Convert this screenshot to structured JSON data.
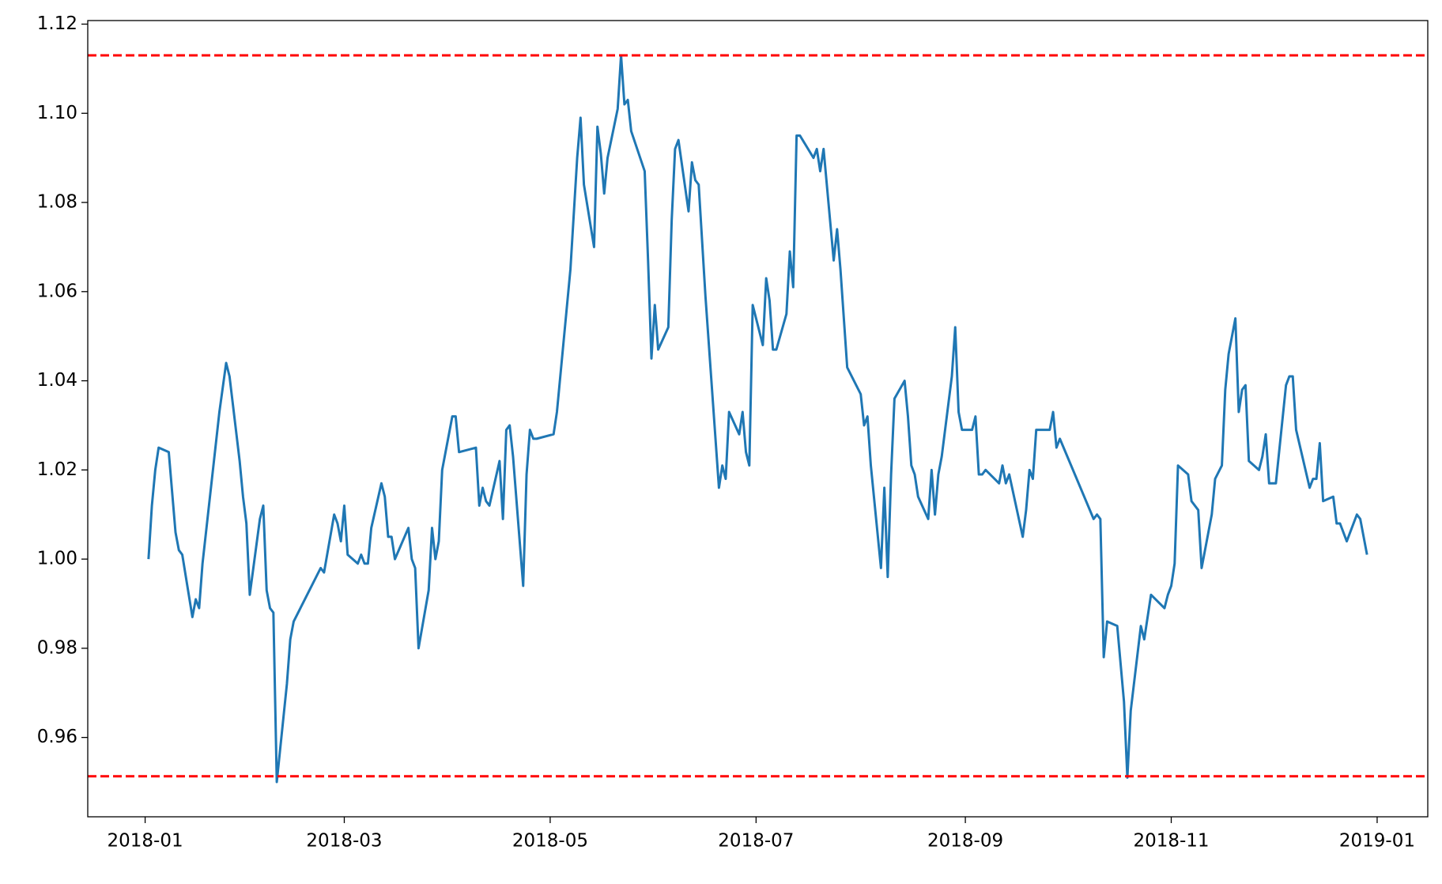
{
  "chart_data": {
    "type": "line",
    "x": [
      "2018-01-02",
      "2018-01-03",
      "2018-01-04",
      "2018-01-05",
      "2018-01-08",
      "2018-01-10",
      "2018-01-11",
      "2018-01-12",
      "2018-01-15",
      "2018-01-16",
      "2018-01-17",
      "2018-01-18",
      "2018-01-23",
      "2018-01-25",
      "2018-01-26",
      "2018-01-29",
      "2018-01-30",
      "2018-01-31",
      "2018-02-01",
      "2018-02-04",
      "2018-02-05",
      "2018-02-06",
      "2018-02-07",
      "2018-02-08",
      "2018-02-09",
      "2018-02-12",
      "2018-02-13",
      "2018-02-14",
      "2018-02-22",
      "2018-02-23",
      "2018-02-26",
      "2018-02-27",
      "2018-02-28",
      "2018-03-01",
      "2018-03-02",
      "2018-03-05",
      "2018-03-06",
      "2018-03-07",
      "2018-03-08",
      "2018-03-09",
      "2018-03-12",
      "2018-03-13",
      "2018-03-14",
      "2018-03-15",
      "2018-03-16",
      "2018-03-20",
      "2018-03-21",
      "2018-03-22",
      "2018-03-23",
      "2018-03-26",
      "2018-03-27",
      "2018-03-28",
      "2018-03-29",
      "2018-03-30",
      "2018-04-02",
      "2018-04-03",
      "2018-04-04",
      "2018-04-09",
      "2018-04-10",
      "2018-04-11",
      "2018-04-12",
      "2018-04-13",
      "2018-04-16",
      "2018-04-17",
      "2018-04-18",
      "2018-04-19",
      "2018-04-20",
      "2018-04-23",
      "2018-04-24",
      "2018-04-25",
      "2018-04-26",
      "2018-04-27",
      "2018-05-02",
      "2018-05-03",
      "2018-05-07",
      "2018-05-09",
      "2018-05-10",
      "2018-05-11",
      "2018-05-14",
      "2018-05-15",
      "2018-05-16",
      "2018-05-17",
      "2018-05-18",
      "2018-05-21",
      "2018-05-22",
      "2018-05-23",
      "2018-05-24",
      "2018-05-25",
      "2018-05-29",
      "2018-05-30",
      "2018-05-31",
      "2018-06-01",
      "2018-06-02",
      "2018-06-05",
      "2018-06-06",
      "2018-06-07",
      "2018-06-08",
      "2018-06-11",
      "2018-06-12",
      "2018-06-13",
      "2018-06-14",
      "2018-06-16",
      "2018-06-20",
      "2018-06-21",
      "2018-06-22",
      "2018-06-23",
      "2018-06-26",
      "2018-06-27",
      "2018-06-28",
      "2018-06-29",
      "2018-06-30",
      "2018-07-03",
      "2018-07-04",
      "2018-07-05",
      "2018-07-06",
      "2018-07-07",
      "2018-07-10",
      "2018-07-11",
      "2018-07-12",
      "2018-07-13",
      "2018-07-14",
      "2018-07-18",
      "2018-07-19",
      "2018-07-20",
      "2018-07-21",
      "2018-07-24",
      "2018-07-25",
      "2018-07-26",
      "2018-07-28",
      "2018-08-01",
      "2018-08-02",
      "2018-08-03",
      "2018-08-04",
      "2018-08-07",
      "2018-08-08",
      "2018-08-09",
      "2018-08-10",
      "2018-08-11",
      "2018-08-14",
      "2018-08-15",
      "2018-08-16",
      "2018-08-17",
      "2018-08-18",
      "2018-08-21",
      "2018-08-22",
      "2018-08-23",
      "2018-08-24",
      "2018-08-25",
      "2018-08-28",
      "2018-08-29",
      "2018-08-30",
      "2018-08-31",
      "2018-09-03",
      "2018-09-04",
      "2018-09-05",
      "2018-09-06",
      "2018-09-07",
      "2018-09-11",
      "2018-09-12",
      "2018-09-13",
      "2018-09-14",
      "2018-09-18",
      "2018-09-19",
      "2018-09-20",
      "2018-09-21",
      "2018-09-22",
      "2018-09-26",
      "2018-09-27",
      "2018-09-28",
      "2018-09-29",
      "2018-10-09",
      "2018-10-10",
      "2018-10-11",
      "2018-10-12",
      "2018-10-13",
      "2018-10-16",
      "2018-10-18",
      "2018-10-19",
      "2018-10-20",
      "2018-10-23",
      "2018-10-24",
      "2018-10-26",
      "2018-10-30",
      "2018-10-31",
      "2018-11-01",
      "2018-11-02",
      "2018-11-03",
      "2018-11-06",
      "2018-11-07",
      "2018-11-09",
      "2018-11-10",
      "2018-11-13",
      "2018-11-14",
      "2018-11-16",
      "2018-11-17",
      "2018-11-18",
      "2018-11-20",
      "2018-11-21",
      "2018-11-22",
      "2018-11-23",
      "2018-11-24",
      "2018-11-27",
      "2018-11-28",
      "2018-11-29",
      "2018-11-30",
      "2018-12-02",
      "2018-12-05",
      "2018-12-06",
      "2018-12-07",
      "2018-12-08",
      "2018-12-12",
      "2018-12-13",
      "2018-12-14",
      "2018-12-15",
      "2018-12-16",
      "2018-12-19",
      "2018-12-20",
      "2018-12-21",
      "2018-12-23",
      "2018-12-26",
      "2018-12-27",
      "2018-12-28",
      "2018-12-29"
    ],
    "series": [
      {
        "color": "#1f77b4",
        "values": [
          1.0,
          1.012,
          1.02,
          1.025,
          1.024,
          1.006,
          1.002,
          1.001,
          0.987,
          0.991,
          0.989,
          0.999,
          1.033,
          1.044,
          1.041,
          1.022,
          1.014,
          1.008,
          0.992,
          1.009,
          1.012,
          0.993,
          0.989,
          0.988,
          0.95,
          0.972,
          0.982,
          0.986,
          0.998,
          0.997,
          1.01,
          1.008,
          1.004,
          1.012,
          1.001,
          0.999,
          1.001,
          0.999,
          0.999,
          1.007,
          1.017,
          1.014,
          1.005,
          1.005,
          1.0,
          1.007,
          1.0,
          0.998,
          0.98,
          0.993,
          1.007,
          1.0,
          1.004,
          1.02,
          1.032,
          1.032,
          1.024,
          1.025,
          1.012,
          1.016,
          1.013,
          1.012,
          1.022,
          1.009,
          1.029,
          1.03,
          1.023,
          0.994,
          1.019,
          1.029,
          1.027,
          1.027,
          1.028,
          1.033,
          1.065,
          1.09,
          1.099,
          1.084,
          1.07,
          1.097,
          1.091,
          1.082,
          1.09,
          1.101,
          1.113,
          1.102,
          1.103,
          1.096,
          1.087,
          1.067,
          1.045,
          1.057,
          1.047,
          1.052,
          1.076,
          1.092,
          1.094,
          1.078,
          1.089,
          1.085,
          1.084,
          1.059,
          1.016,
          1.021,
          1.018,
          1.033,
          1.028,
          1.033,
          1.024,
          1.021,
          1.057,
          1.048,
          1.063,
          1.058,
          1.047,
          1.047,
          1.055,
          1.069,
          1.061,
          1.095,
          1.095,
          1.09,
          1.092,
          1.087,
          1.092,
          1.067,
          1.074,
          1.065,
          1.043,
          1.037,
          1.03,
          1.032,
          1.021,
          0.998,
          1.016,
          0.996,
          1.019,
          1.036,
          1.04,
          1.032,
          1.021,
          1.019,
          1.014,
          1.009,
          1.02,
          1.01,
          1.019,
          1.023,
          1.041,
          1.052,
          1.033,
          1.029,
          1.029,
          1.032,
          1.019,
          1.019,
          1.02,
          1.017,
          1.021,
          1.017,
          1.019,
          1.005,
          1.011,
          1.02,
          1.018,
          1.029,
          1.029,
          1.033,
          1.025,
          1.027,
          1.009,
          1.01,
          1.009,
          0.978,
          0.986,
          0.985,
          0.968,
          0.951,
          0.966,
          0.985,
          0.982,
          0.992,
          0.989,
          0.992,
          0.994,
          0.999,
          1.021,
          1.019,
          1.013,
          1.011,
          0.998,
          1.01,
          1.018,
          1.021,
          1.038,
          1.046,
          1.054,
          1.033,
          1.038,
          1.039,
          1.022,
          1.02,
          1.023,
          1.028,
          1.017,
          1.017,
          1.039,
          1.041,
          1.041,
          1.029,
          1.016,
          1.018,
          1.018,
          1.026,
          1.013,
          1.014,
          1.008,
          1.008,
          1.004,
          1.01,
          1.009,
          1.005,
          1.001
        ]
      }
    ],
    "hlines": [
      {
        "value": 1.113,
        "color": "#ff0000"
      },
      {
        "value": 0.9513,
        "color": "#ff0000"
      }
    ],
    "xlim": [
      "2017-12-15",
      "2019-01-16"
    ],
    "xticks": [
      "2018-01",
      "2018-03",
      "2018-05",
      "2018-07",
      "2018-09",
      "2018-11",
      "2019-01"
    ],
    "ylim": [
      0.9422,
      1.1208
    ],
    "yticks": [
      0.96,
      0.98,
      {
        "value": 1,
        "label": "1.00"
      },
      1.02,
      1.04,
      1.06,
      1.08,
      {
        "value": 1.1,
        "label": "1.10"
      },
      1.12
    ]
  }
}
